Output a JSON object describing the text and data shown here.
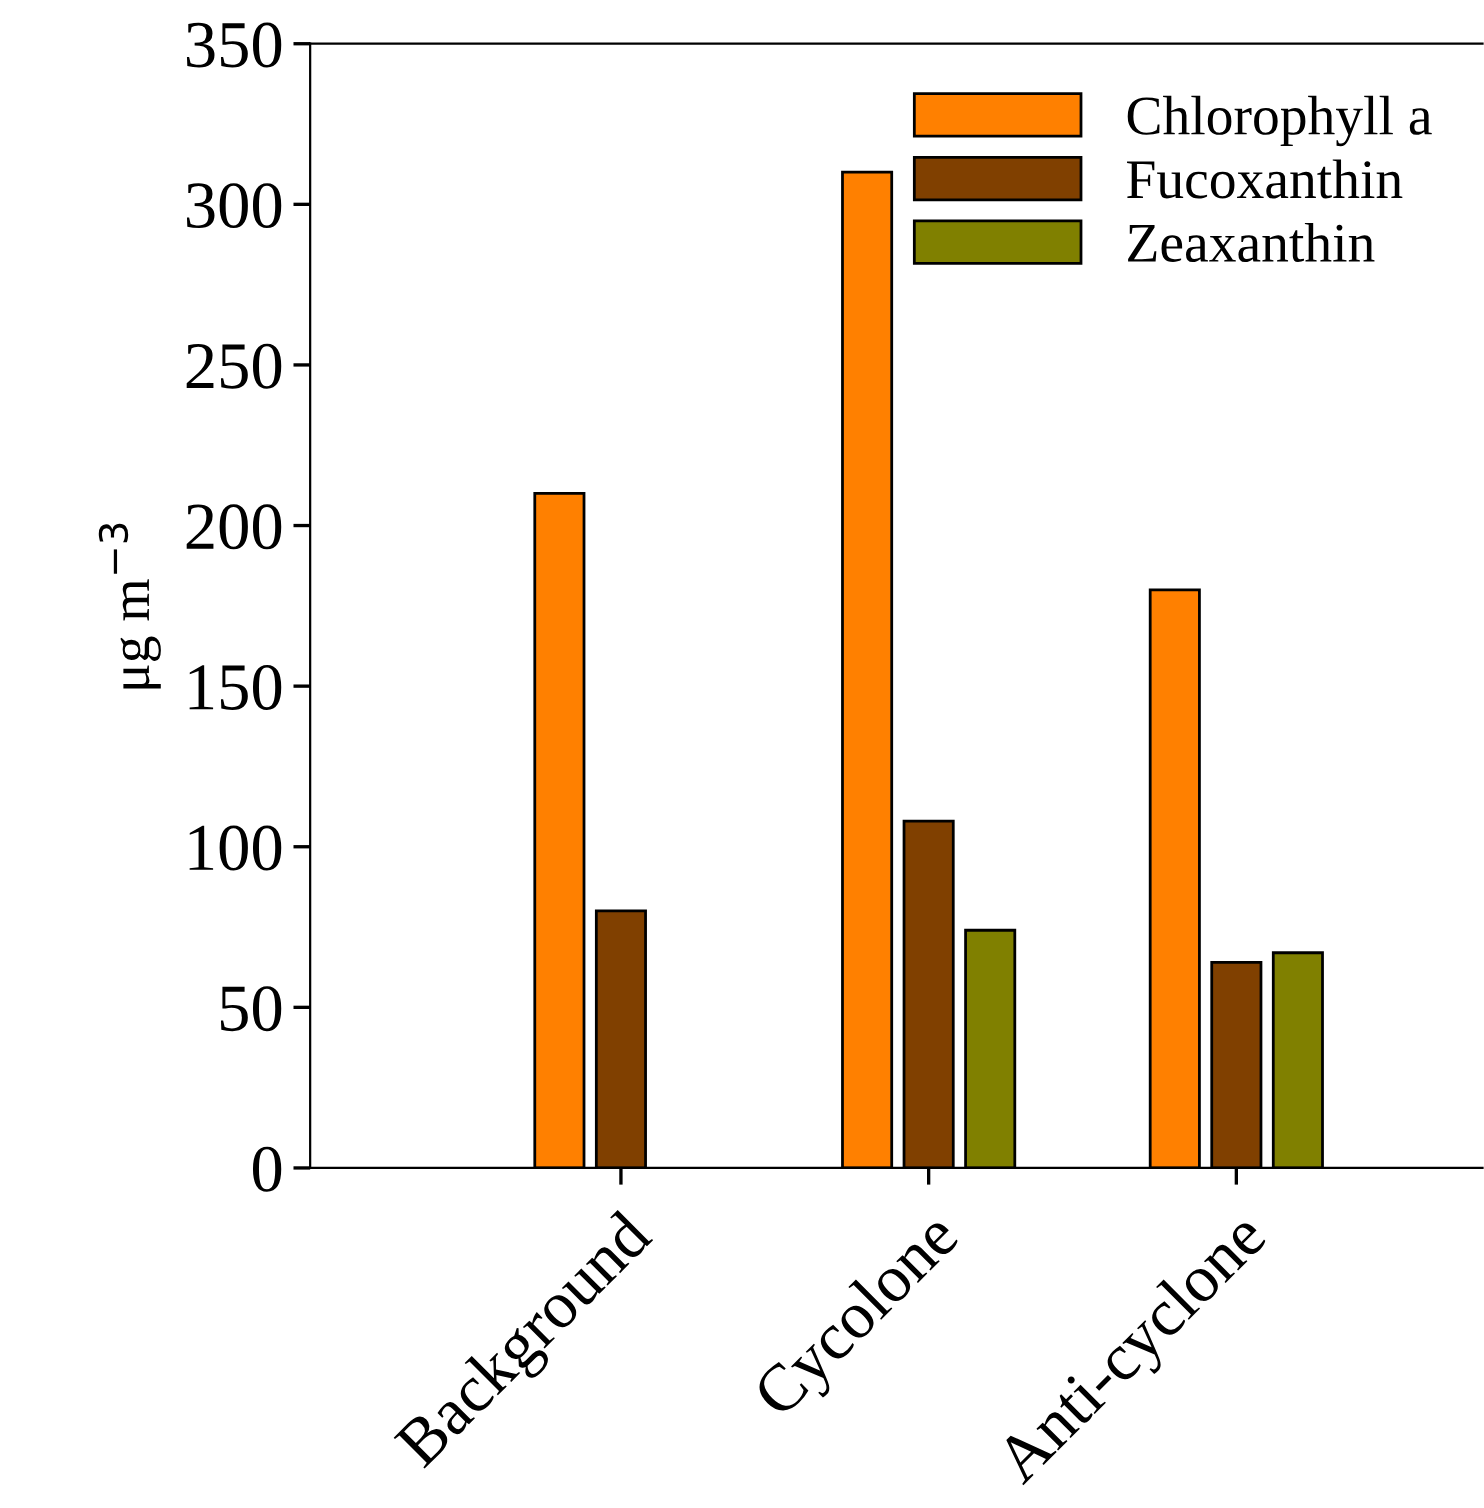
{
  "chart_data": {
    "type": "bar",
    "ylabel": "μg m$^{−3}$",
    "categories": [
      "Background",
      "Cycolone",
      "Anti-cyclone"
    ],
    "series": [
      {
        "name": "Chlorophyll a",
        "color": "#ff8000",
        "values": [
          210,
          310,
          180
        ]
      },
      {
        "name": "Fucoxanthin",
        "color": "#804000",
        "values": [
          80,
          108,
          64
        ]
      },
      {
        "name": "Zeaxanthin",
        "color": "#808000",
        "values": [
          null,
          74,
          67
        ]
      }
    ],
    "ylim": [
      0,
      350
    ],
    "yticks": [
      0,
      50,
      100,
      150,
      200,
      250,
      300,
      350
    ],
    "grid": false,
    "legend": "top right"
  }
}
